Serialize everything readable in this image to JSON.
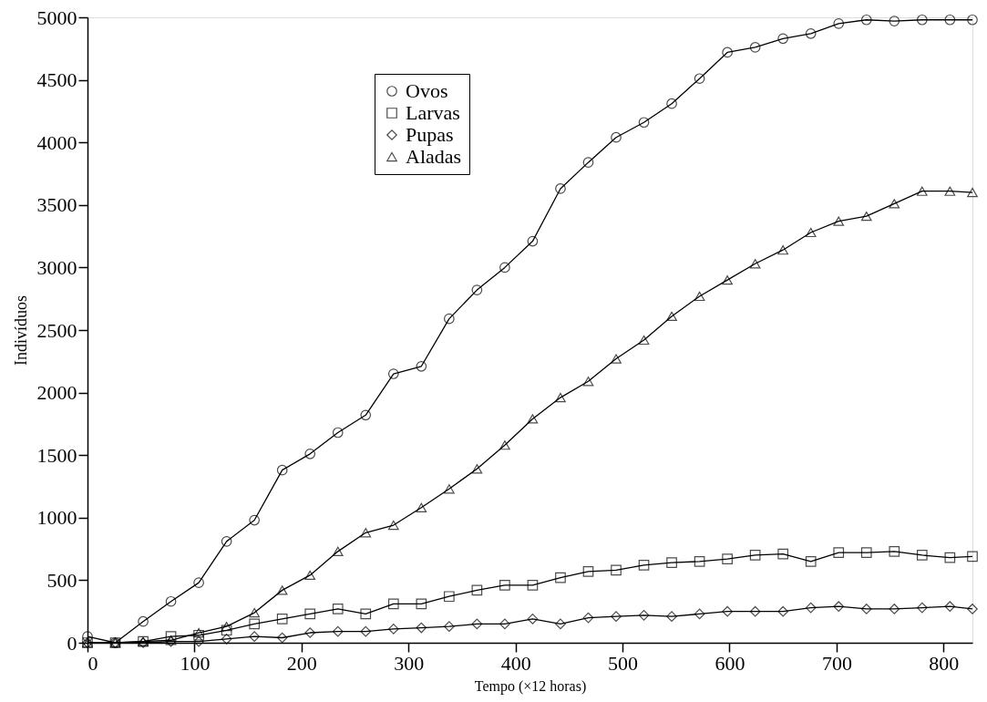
{
  "chart_data": {
    "type": "line",
    "xlabel": "Tempo (×12 horas)",
    "ylabel": "Indivíduos",
    "x": [
      0,
      26,
      52,
      78,
      104,
      130,
      156,
      182,
      208,
      234,
      260,
      286,
      312,
      338,
      364,
      390,
      416,
      442,
      468,
      494,
      520,
      546,
      572,
      598,
      624,
      650,
      676,
      702,
      728,
      754,
      780,
      806,
      827
    ],
    "xlim": [
      0,
      827
    ],
    "xticks": [
      0,
      100,
      200,
      300,
      400,
      500,
      600,
      700,
      800
    ],
    "ylim": [
      0,
      5000
    ],
    "yticks": [
      0,
      500,
      1000,
      1500,
      2000,
      2500,
      3000,
      3500,
      4000,
      4500,
      5000
    ],
    "grid": false,
    "legend": "top",
    "line_style": "solid",
    "series": [
      {
        "name": "Ovos",
        "color": "#000000",
        "marker": "circle",
        "values": [
          50,
          0,
          170,
          330,
          480,
          810,
          980,
          1380,
          1510,
          1680,
          1820,
          2150,
          2210,
          2590,
          2820,
          3000,
          3210,
          3630,
          3840,
          4040,
          4160,
          4310,
          4510,
          4720,
          4760,
          4830,
          4870,
          4950,
          4980,
          4970,
          4980,
          4980,
          4980
        ]
      },
      {
        "name": "Larvas",
        "color": "#000000",
        "marker": "square",
        "values": [
          0,
          0,
          10,
          50,
          60,
          100,
          150,
          190,
          230,
          270,
          230,
          310,
          310,
          370,
          420,
          460,
          460,
          520,
          570,
          580,
          620,
          640,
          650,
          670,
          700,
          710,
          650,
          720,
          720,
          730,
          700,
          680,
          690
        ]
      },
      {
        "name": "Pupas",
        "color": "#000000",
        "marker": "diamond",
        "values": [
          0,
          0,
          0,
          10,
          10,
          30,
          50,
          40,
          80,
          90,
          90,
          110,
          120,
          130,
          150,
          150,
          190,
          150,
          200,
          210,
          220,
          210,
          230,
          250,
          250,
          250,
          280,
          290,
          270,
          270,
          280,
          290,
          270
        ]
      },
      {
        "name": "Aladas",
        "color": "#000000",
        "marker": "triangle",
        "values": [
          0,
          0,
          10,
          20,
          80,
          130,
          240,
          420,
          540,
          730,
          880,
          940,
          1080,
          1230,
          1390,
          1580,
          1790,
          1960,
          2090,
          2270,
          2420,
          2610,
          2770,
          2900,
          3030,
          3140,
          3280,
          3370,
          3410,
          3510,
          3610,
          3610,
          3600
        ]
      }
    ]
  }
}
